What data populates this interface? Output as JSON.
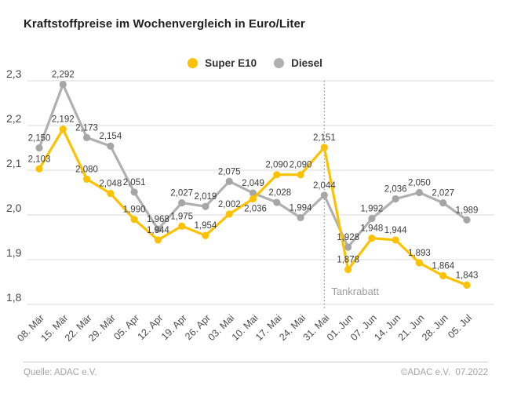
{
  "title": "Kraftstoffpreise im Wochenvergleich in Euro/Liter",
  "footer": {
    "source": "Quelle: ADAC e.V.",
    "copyright": "©ADAC e.V.  07.2022"
  },
  "colors": {
    "super_e10": "#FCC200",
    "diesel_line": "#B0B0B0",
    "diesel_point": "#A6A6A6",
    "grid": "#DBDBDB",
    "value_label": "#3C3C3C",
    "axis_text": "#4A4A4A",
    "divider_line": "#8C8C8C",
    "annotation_text": "#9E9E9E"
  },
  "chart_data": {
    "type": "line",
    "title": "Kraftstoffpreise im Wochenvergleich in Euro/Liter",
    "unit": "Euro/Liter",
    "categories": [
      "08. Mär",
      "15. Mär",
      "22. Mär",
      "29. Mär",
      "05. Apr",
      "12. Apr",
      "19. Apr",
      "26. Apr",
      "03. Mai",
      "10. Mai",
      "17. Mai",
      "24. Mai",
      "31. Mai",
      "01. Jun",
      "07. Jun",
      "14. Jun",
      "21. Jun",
      "28. Jun",
      "05. Jul"
    ],
    "series": [
      {
        "name": "Super E10",
        "color": "#FCC200",
        "point_color": "#FCC200",
        "values": [
          2.103,
          2.192,
          2.08,
          2.048,
          1.99,
          1.944,
          1.975,
          1.954,
          2.002,
          2.036,
          2.09,
          2.09,
          2.151,
          1.878,
          1.948,
          1.944,
          1.893,
          1.864,
          1.843
        ]
      },
      {
        "name": "Diesel",
        "color": "#B0B0B0",
        "point_color": "#A6A6A6",
        "values": [
          2.15,
          2.292,
          2.173,
          2.154,
          2.051,
          1.968,
          2.027,
          2.019,
          2.075,
          2.049,
          2.028,
          1.994,
          2.044,
          1.928,
          1.992,
          2.036,
          2.05,
          2.027,
          1.989
        ]
      }
    ],
    "ylim": [
      1.8,
      2.3
    ],
    "yticks": [
      2.3,
      2.2,
      2.1,
      2.0,
      1.9,
      1.8
    ],
    "ytick_labels": [
      "2,3",
      "2,2",
      "2,1",
      "2,0",
      "1,9",
      "1,8"
    ],
    "grid": true,
    "value_labels": true,
    "decimal_format": "de-comma-3",
    "legend_position": "top-center",
    "annotation": {
      "label": "Tankrabatt",
      "at_category": "31. Mai",
      "style": "dotted-vertical-line"
    }
  }
}
